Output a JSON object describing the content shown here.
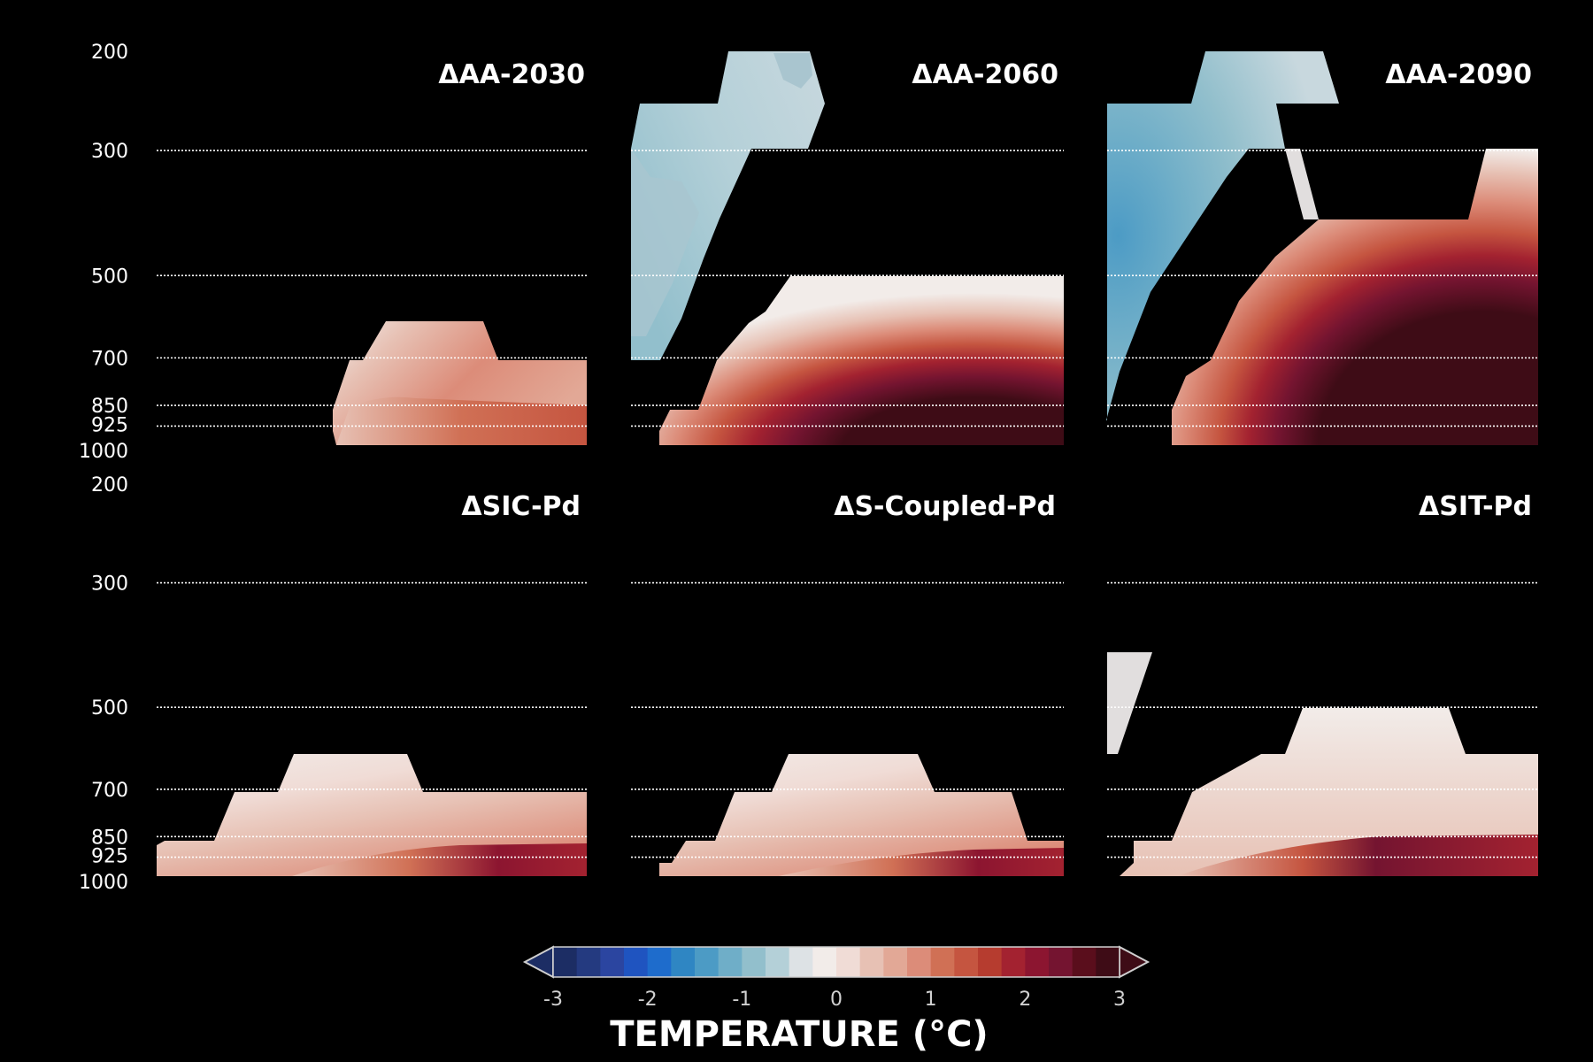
{
  "chart_data": {
    "type": "contour",
    "y_levels": [
      200,
      300,
      500,
      700,
      850,
      925,
      1000
    ],
    "y_gridlines": [
      300,
      500,
      700,
      850,
      925
    ],
    "grid": "dotted-horizontal",
    "colorbar": {
      "label": "TEMPERATURE (°C)",
      "ticks": [
        -3,
        -2,
        -1,
        0,
        1,
        2,
        3
      ],
      "range": [
        -3,
        3
      ],
      "levels": 24,
      "extend": "both",
      "colors": [
        "#1c2d64",
        "#243a80",
        "#2b45a0",
        "#1f54c0",
        "#1e6ccc",
        "#2f86c3",
        "#4c9bc5",
        "#6faec8",
        "#92bfcc",
        "#b4d0d8",
        "#dde2e5",
        "#f2ece9",
        "#f0dcd6",
        "#e7c1b4",
        "#e2a896",
        "#dc8c79",
        "#d07055",
        "#c55540",
        "#b63c2f",
        "#a32230",
        "#8c1530",
        "#741430",
        "#5a0e1c",
        "#3e0c16"
      ]
    },
    "panels": [
      {
        "title": "ΔAA-2030",
        "row": 0,
        "col": 0,
        "contours": [
          {
            "value": 0.8,
            "pressure_bands": [
              [
                600,
                1000
              ]
            ]
          },
          {
            "value": 1.2,
            "pressure_bands": [
              [
                850,
                1000
              ]
            ]
          }
        ]
      },
      {
        "title": "ΔAA-2060",
        "row": 0,
        "col": 1,
        "contours": [
          {
            "value": -0.6,
            "pressure_bands": [
              [
                200,
                700
              ]
            ]
          },
          {
            "value": 3.0,
            "pressure_bands": [
              [
                500,
                1000
              ]
            ]
          }
        ]
      },
      {
        "title": "ΔAA-2090",
        "row": 0,
        "col": 2,
        "contours": [
          {
            "value": -1.2,
            "pressure_bands": [
              [
                200,
                925
              ]
            ]
          },
          {
            "value": 3.0,
            "pressure_bands": [
              [
                300,
                1000
              ]
            ]
          }
        ]
      },
      {
        "title": "ΔSIC-Pd",
        "row": 1,
        "col": 0,
        "contours": [
          {
            "value": 0.4,
            "pressure_bands": [
              [
                600,
                1000
              ]
            ]
          },
          {
            "value": 2.5,
            "pressure_bands": [
              [
                925,
                1000
              ]
            ]
          }
        ]
      },
      {
        "title": "ΔS-Coupled-Pd",
        "row": 1,
        "col": 1,
        "contours": [
          {
            "value": 0.6,
            "pressure_bands": [
              [
                600,
                1000
              ]
            ]
          },
          {
            "value": 2.5,
            "pressure_bands": [
              [
                925,
                1000
              ]
            ]
          }
        ]
      },
      {
        "title": "ΔSIT-Pd",
        "row": 1,
        "col": 2,
        "contours": [
          {
            "value": -0.2,
            "pressure_bands": [
              [
                400,
                600
              ]
            ]
          },
          {
            "value": 0.5,
            "pressure_bands": [
              [
                500,
                1000
              ]
            ]
          },
          {
            "value": 2.8,
            "pressure_bands": [
              [
                850,
                1000
              ]
            ]
          }
        ]
      }
    ]
  }
}
